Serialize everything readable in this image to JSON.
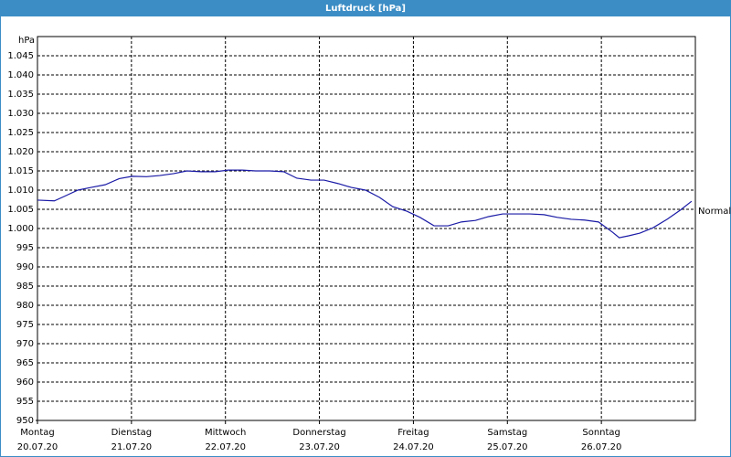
{
  "chart_data": {
    "type": "line",
    "title": "Luftdruck [hPa]",
    "y_label": "hPa",
    "annotation": "Normal",
    "x": [
      0,
      0.18,
      0.28,
      0.43,
      0.57,
      0.72,
      0.87,
      1.01,
      1.16,
      1.3,
      1.45,
      1.59,
      1.74,
      1.89,
      2.03,
      2.18,
      2.32,
      2.47,
      2.62,
      2.76,
      2.91,
      3.05,
      3.2,
      3.34,
      3.49,
      3.64,
      3.78,
      3.93,
      4.07,
      4.22,
      4.37,
      4.51,
      4.66,
      4.8,
      4.95,
      5.09,
      5.24,
      5.39,
      5.53,
      5.68,
      5.82,
      5.97,
      6.12,
      6.19,
      6.29,
      6.41,
      6.55,
      6.7,
      6.84,
      6.96
    ],
    "series": [
      {
        "name": "Luftdruck",
        "color": "#1a1aa6",
        "values": [
          1007.4,
          1007.2,
          1008.3,
          1010,
          1010.7,
          1011.4,
          1013,
          1013.6,
          1013.5,
          1013.8,
          1014.3,
          1015,
          1014.8,
          1014.8,
          1015.2,
          1015.2,
          1015,
          1015,
          1014.8,
          1013.1,
          1012.6,
          1012.6,
          1011.7,
          1010.7,
          1010,
          1008.1,
          1005.7,
          1004.5,
          1002.9,
          1000.7,
          1000.7,
          1001.7,
          1002.1,
          1003.1,
          1003.8,
          1003.8,
          1003.8,
          1003.6,
          1002.9,
          1002.4,
          1002.2,
          1001.7,
          999,
          997.6,
          998.1,
          998.8,
          1000.2,
          1002.4,
          1004.8,
          1007.1
        ]
      }
    ],
    "xlim": [
      0,
      7
    ],
    "xticks": [
      {
        "value": 0,
        "label": "Montag"
      },
      {
        "value": 1,
        "label": "Dienstag"
      },
      {
        "value": 2,
        "label": "Mittwoch"
      },
      {
        "value": 3,
        "label": "Donnerstag"
      },
      {
        "value": 4,
        "label": "Freitag"
      },
      {
        "value": 5,
        "label": "Samstag"
      },
      {
        "value": 6,
        "label": "Sonntag"
      }
    ],
    "xtick_dates": [
      "20.07.20",
      "21.07.20",
      "22.07.20",
      "23.07.20",
      "24.07.20",
      "25.07.20",
      "26.07.20"
    ],
    "ylim": [
      950,
      1050
    ],
    "yticks": [
      950,
      955,
      960,
      965,
      970,
      975,
      980,
      985,
      990,
      995,
      {
        "value": 1000,
        "label": "1.000"
      },
      {
        "value": 1005,
        "label": "1.005"
      },
      {
        "value": 1010,
        "label": "1.010"
      },
      {
        "value": 1015,
        "label": "1.015"
      },
      {
        "value": 1020,
        "label": "1.020"
      },
      {
        "value": 1025,
        "label": "1.025"
      },
      {
        "value": 1030,
        "label": "1.030"
      },
      {
        "value": 1035,
        "label": "1.035"
      },
      {
        "value": 1040,
        "label": "1.040"
      },
      {
        "value": 1045,
        "label": "1.045"
      }
    ],
    "grid": true
  }
}
